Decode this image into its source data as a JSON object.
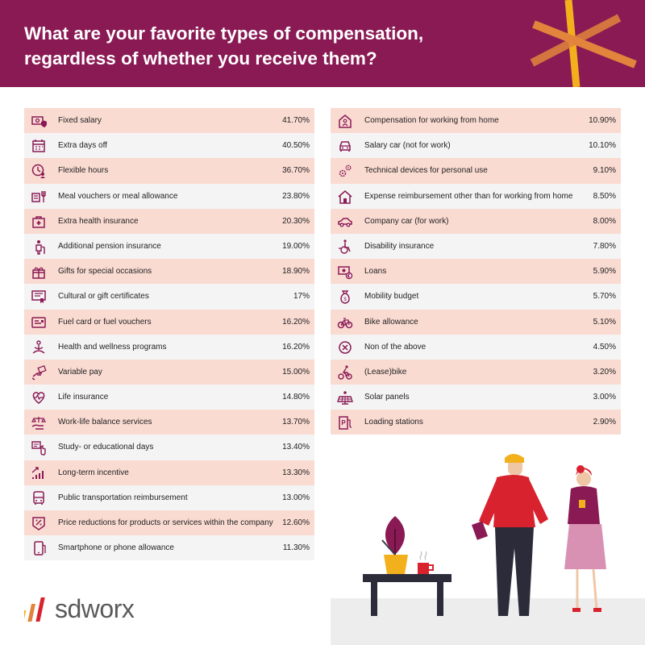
{
  "colors": {
    "header": "#8a1a54",
    "row_odd": "#fadbd2",
    "row_even": "#f4f4f4",
    "icon": "#8a1a54",
    "accent_yellow": "#f2b01c",
    "accent_orange": "#e2843c"
  },
  "title": "What are your favorite types of compensation, regardless of whether you receive them?",
  "logo": {
    "text": "sdworx"
  },
  "chart_data": {
    "type": "table",
    "title": "What are your favorite types of compensation, regardless of whether you receive them?",
    "columns": [
      [
        {
          "label": "Fixed salary",
          "value_text": "41.70%",
          "value": 41.7,
          "icon": "money-shield-icon"
        },
        {
          "label": "Extra days off",
          "value_text": "40.50%",
          "value": 40.5,
          "icon": "calendar-icon"
        },
        {
          "label": "Flexible hours",
          "value_text": "36.70%",
          "value": 36.7,
          "icon": "clock-person-icon"
        },
        {
          "label": "Meal vouchers or meal allowance",
          "value_text": "23.80%",
          "value": 23.8,
          "icon": "meal-voucher-icon"
        },
        {
          "label": "Extra health insurance",
          "value_text": "20.30%",
          "value": 20.3,
          "icon": "medical-kit-icon"
        },
        {
          "label": "Additional pension insurance",
          "value_text": "19.00%",
          "value": 19.0,
          "icon": "pension-icon"
        },
        {
          "label": "Gifts for special occasions",
          "value_text": "18.90%",
          "value": 18.9,
          "icon": "gift-icon"
        },
        {
          "label": "Cultural or gift certificates",
          "value_text": "17%",
          "value": 17,
          "icon": "certificate-icon"
        },
        {
          "label": "Fuel card or fuel vouchers",
          "value_text": "16.20%",
          "value": 16.2,
          "icon": "fuel-card-icon"
        },
        {
          "label": "Health and wellness programs",
          "value_text": "16.20%",
          "value": 16.2,
          "icon": "meditation-icon"
        },
        {
          "label": "Variable pay",
          "value_text": "15.00%",
          "value": 15.0,
          "icon": "hand-money-icon"
        },
        {
          "label": "Life insurance",
          "value_text": "14.80%",
          "value": 14.8,
          "icon": "heartbeat-icon"
        },
        {
          "label": "Work-life balance services",
          "value_text": "13.70%",
          "value": 13.7,
          "icon": "balance-hand-icon"
        },
        {
          "label": "Study- or educational days",
          "value_text": "13.40%",
          "value": 13.4,
          "icon": "study-icon"
        },
        {
          "label": "Long-term incentive",
          "value_text": "13.30%",
          "value": 13.3,
          "icon": "growth-chart-icon"
        },
        {
          "label": "Public transportation reimbursement",
          "value_text": "13.00%",
          "value": 13.0,
          "icon": "bus-icon"
        },
        {
          "label": "Price reductions for products or services within the company",
          "value_text": "12.60%",
          "value": 12.6,
          "icon": "discount-icon"
        },
        {
          "label": "Smartphone or phone allowance",
          "value_text": "11.30%",
          "value": 11.3,
          "icon": "smartphone-icon"
        }
      ],
      [
        {
          "label": "Compensation for working from home",
          "value_text": "10.90%",
          "value": 10.9,
          "icon": "home-person-icon"
        },
        {
          "label": "Salary car (not for work)",
          "value_text": "10.10%",
          "value": 10.1,
          "icon": "car-front-icon"
        },
        {
          "label": "Technical devices for personal use",
          "value_text": "9.10%",
          "value": 9.1,
          "icon": "gears-icon"
        },
        {
          "label": "Expense reimbursement other than for working from home",
          "value_text": "8.50%",
          "value": 8.5,
          "icon": "house-icon"
        },
        {
          "label": "Company car (for work)",
          "value_text": "8.00%",
          "value": 8.0,
          "icon": "car-side-icon"
        },
        {
          "label": "Disability insurance",
          "value_text": "7.80%",
          "value": 7.8,
          "icon": "wheelchair-icon"
        },
        {
          "label": "Loans",
          "value_text": "5.90%",
          "value": 5.9,
          "icon": "loan-icon"
        },
        {
          "label": "Mobility budget",
          "value_text": "5.70%",
          "value": 5.7,
          "icon": "money-bag-icon"
        },
        {
          "label": "Bike allowance",
          "value_text": "5.10%",
          "value": 5.1,
          "icon": "bicycle-icon"
        },
        {
          "label": "Non of the above",
          "value_text": "4.50%",
          "value": 4.5,
          "icon": "cross-circle-icon"
        },
        {
          "label": "(Lease)bike",
          "value_text": "3.20%",
          "value": 3.2,
          "icon": "cyclist-icon"
        },
        {
          "label": "Solar panels",
          "value_text": "3.00%",
          "value": 3.0,
          "icon": "solar-panel-icon"
        },
        {
          "label": "Loading stations",
          "value_text": "2.90%",
          "value": 2.9,
          "icon": "charging-station-icon"
        }
      ]
    ]
  }
}
